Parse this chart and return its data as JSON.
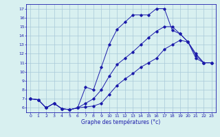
{
  "hours": [
    0,
    1,
    2,
    3,
    4,
    5,
    6,
    7,
    8,
    9,
    10,
    11,
    12,
    13,
    14,
    15,
    16,
    17,
    18,
    19,
    20,
    21,
    22,
    23
  ],
  "temp_line1": [
    7.0,
    6.9,
    6.0,
    6.5,
    5.9,
    5.8,
    6.0,
    8.3,
    8.0,
    10.5,
    13.0,
    14.7,
    15.5,
    16.3,
    16.3,
    16.3,
    17.0,
    17.0,
    14.6,
    14.2,
    13.3,
    12.0,
    11.0,
    11.0
  ],
  "temp_line2": [
    7.0,
    6.9,
    6.0,
    6.5,
    5.9,
    5.8,
    6.0,
    6.5,
    7.0,
    8.0,
    9.5,
    10.8,
    11.5,
    12.2,
    13.0,
    13.8,
    14.5,
    15.0,
    15.0,
    14.2,
    13.3,
    11.8,
    11.0,
    11.0
  ],
  "temp_line3": [
    7.0,
    6.9,
    6.0,
    6.5,
    5.9,
    5.8,
    6.0,
    6.1,
    6.2,
    6.5,
    7.5,
    8.5,
    9.2,
    9.8,
    10.5,
    11.0,
    11.5,
    12.5,
    13.0,
    13.5,
    13.3,
    11.5,
    11.0,
    11.0
  ],
  "line_color": "#1a1aaa",
  "bg_color": "#d8f0f0",
  "grid_color": "#a8c8d8",
  "xlabel": "Graphe des températures (°c)",
  "ylim": [
    5.5,
    17.5
  ],
  "xlim": [
    -0.5,
    23.5
  ],
  "yticks": [
    6,
    7,
    8,
    9,
    10,
    11,
    12,
    13,
    14,
    15,
    16,
    17
  ],
  "xticks": [
    0,
    1,
    2,
    3,
    4,
    5,
    6,
    7,
    8,
    9,
    10,
    11,
    12,
    13,
    14,
    15,
    16,
    17,
    18,
    19,
    20,
    21,
    22,
    23
  ],
  "figsize": [
    3.2,
    2.0
  ],
  "dpi": 100
}
